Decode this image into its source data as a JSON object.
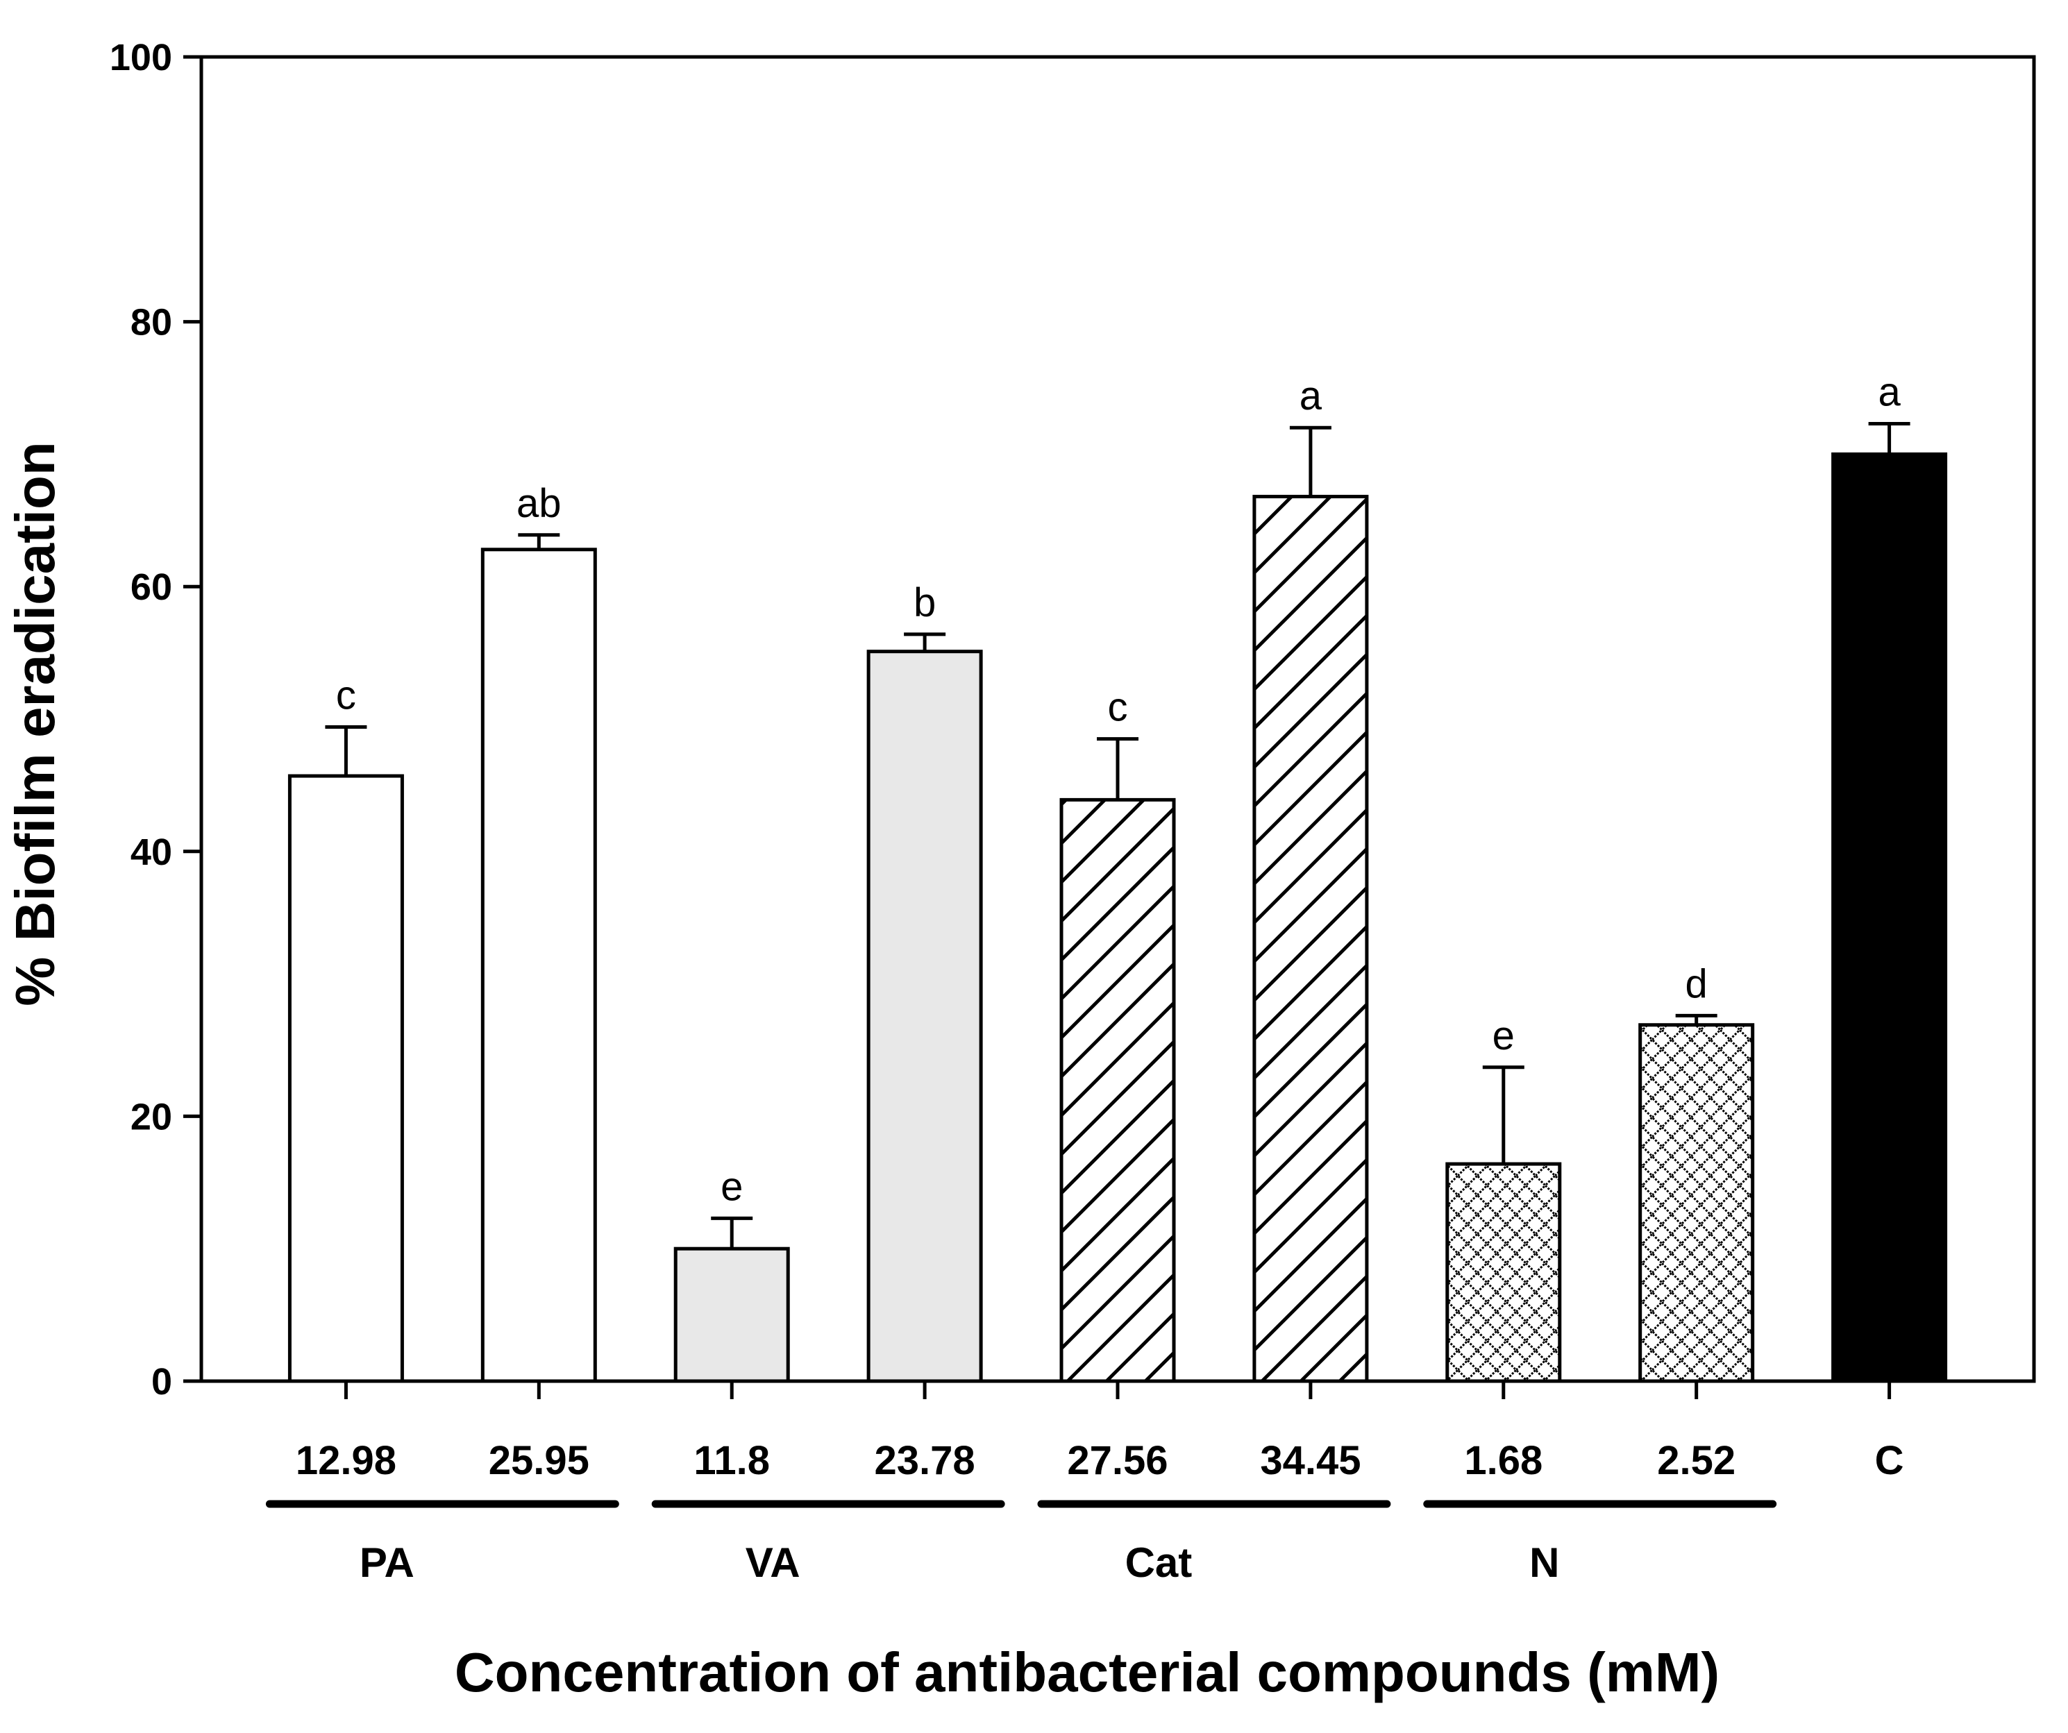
{
  "chart_data": {
    "type": "bar",
    "title": "",
    "xlabel": "Concentration of antibacterial compounds (mM)",
    "ylabel": "% Biofilm eradication",
    "ylim": [
      0,
      100
    ],
    "yticks": [
      0,
      20,
      40,
      60,
      80,
      100
    ],
    "grid": false,
    "categories": [
      "12.98",
      "25.95",
      "11.8",
      "23.78",
      "27.56",
      "34.45",
      "1.68",
      "2.52",
      "C"
    ],
    "values": [
      45.7,
      62.8,
      10.0,
      55.1,
      43.9,
      66.8,
      16.4,
      26.9,
      70.0
    ],
    "errors": [
      3.7,
      1.1,
      2.3,
      1.3,
      4.6,
      5.2,
      7.3,
      0.7,
      2.3
    ],
    "significance": [
      "c",
      "ab",
      "e",
      "b",
      "c",
      "a",
      "e",
      "d",
      "a"
    ],
    "fills": [
      "white",
      "white",
      "lightgray",
      "lightgray",
      "hatch",
      "hatch",
      "crosshatch",
      "crosshatch",
      "black"
    ],
    "groups": [
      {
        "label": "PA",
        "start": 0,
        "end": 1
      },
      {
        "label": "VA",
        "start": 2,
        "end": 3
      },
      {
        "label": "Cat",
        "start": 4,
        "end": 5
      },
      {
        "label": "N",
        "start": 6,
        "end": 7
      }
    ],
    "colors": {
      "lightgray": "#e8e8e8",
      "black": "#000000",
      "white": "#ffffff"
    }
  }
}
